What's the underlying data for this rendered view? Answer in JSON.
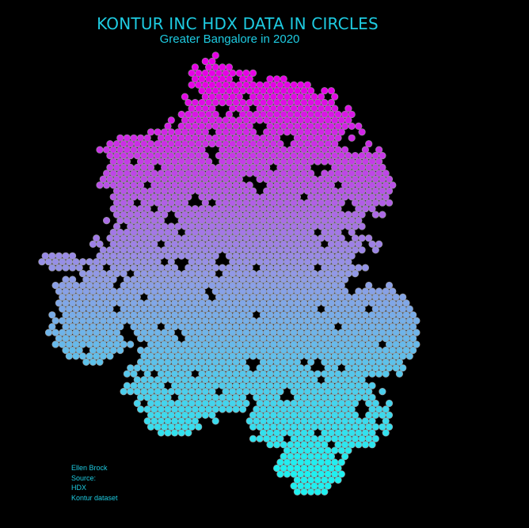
{
  "title": "KONTUR INC HDX DATA IN CIRCLES",
  "subtitle": "Greater Bangalore in 2020",
  "credits": [
    "Ellen Brock",
    "Source:",
    "HDX",
    "Kontur dataset"
  ],
  "colors": {
    "background": "#000000",
    "text": "#1ecbe1",
    "circle_outline": "#9a9a9a",
    "gradient_top": "#e600e6",
    "gradient_mid": "#8f9be6",
    "gradient_bottom": "#1ef0f0"
  }
}
